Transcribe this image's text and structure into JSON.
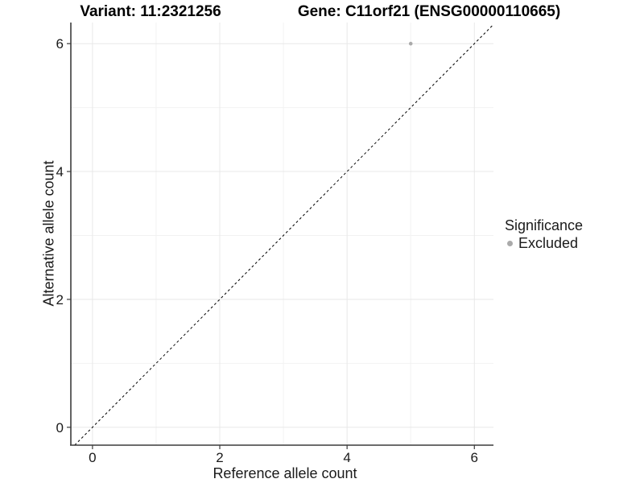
{
  "titles": {
    "variant": "Variant: 11:2321256",
    "gene": "Gene: C11orf21 (ENSG00000110665)"
  },
  "chart_data": {
    "type": "scatter",
    "xlabel": "Reference allele count",
    "ylabel": "Alternative allele count",
    "xlim": [
      -0.34,
      6.3
    ],
    "ylim": [
      -0.28,
      6.33
    ],
    "xticks": [
      0,
      2,
      4,
      6
    ],
    "yticks": [
      0,
      2,
      4,
      6
    ],
    "xminor": [
      1,
      3,
      5
    ],
    "yminor": [
      1,
      3,
      5
    ],
    "grid": "on",
    "identity_line": {
      "style": "dashed",
      "slope": 1,
      "intercept": 0,
      "color": "#000000"
    },
    "series": [
      {
        "name": "Excluded",
        "color": "#aaaaaa",
        "points": [
          {
            "x": 5,
            "y": 6
          }
        ]
      }
    ],
    "legend": {
      "title": "Significance",
      "position": "right",
      "items": [
        {
          "label": "Excluded",
          "color": "#aaaaaa"
        }
      ]
    }
  },
  "colors": {
    "background": "#ffffff",
    "axis_line": "#3c3c3c",
    "tick_text": "#1a1a1a",
    "grid_major": "#e8e8e8",
    "grid_minor": "#f2f2f2",
    "point": "#aaaaaa"
  }
}
